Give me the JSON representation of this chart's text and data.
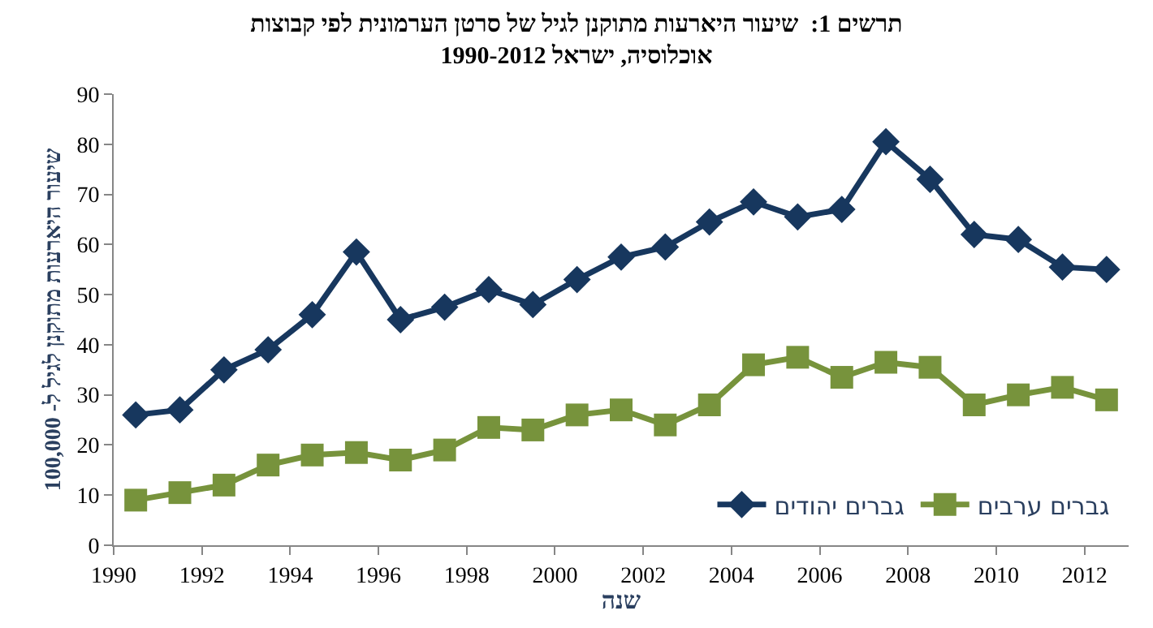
{
  "chart_data": {
    "type": "line",
    "title": "תרשים 1:  שיעור היארעות מתוקנן לגיל של סרטן הערמונית לפי קבוצות\nאוכלוסיה, ישראל 1990-2012",
    "xlabel": "שנה",
    "ylabel": "שיעור היארעות מתוקנן לגיל ל- 100,000",
    "x": [
      1990.5,
      1991.5,
      1992.5,
      1993.5,
      1994.5,
      1995.5,
      1996.5,
      1997.5,
      1998.5,
      1999.5,
      2000.5,
      2001.5,
      2002.5,
      2003.5,
      2004.5,
      2005.5,
      2006.5,
      2007.5,
      2008.5,
      2009.5,
      2010.5,
      2011.5,
      2012.5
    ],
    "series": [
      {
        "name": "גברים יהודים",
        "color": "#17375e",
        "marker": "diamond",
        "values": [
          26,
          27,
          35,
          39,
          46,
          58.5,
          45,
          47.5,
          51,
          48,
          53,
          57.5,
          59.5,
          64.5,
          68.5,
          65.5,
          67,
          80.5,
          73,
          62,
          61,
          55.5,
          55
        ]
      },
      {
        "name": "גברים ערבים",
        "color": "#77933c",
        "marker": "square",
        "values": [
          9,
          10.5,
          12,
          16,
          18,
          18.5,
          17,
          19,
          23.5,
          23,
          26,
          27,
          24,
          28,
          36,
          37.5,
          33.5,
          36.5,
          35.5,
          28,
          30,
          31.5,
          29
        ]
      }
    ],
    "xlim": [
      1990,
      2013
    ],
    "xticks": [
      1990,
      1992,
      1994,
      1996,
      1998,
      2000,
      2002,
      2004,
      2006,
      2008,
      2010,
      2012
    ],
    "ylim": [
      0,
      90
    ],
    "yticks": [
      0,
      10,
      20,
      30,
      40,
      50,
      60,
      70,
      80,
      90
    ],
    "legend": "bottom right",
    "line_style": "solid"
  }
}
